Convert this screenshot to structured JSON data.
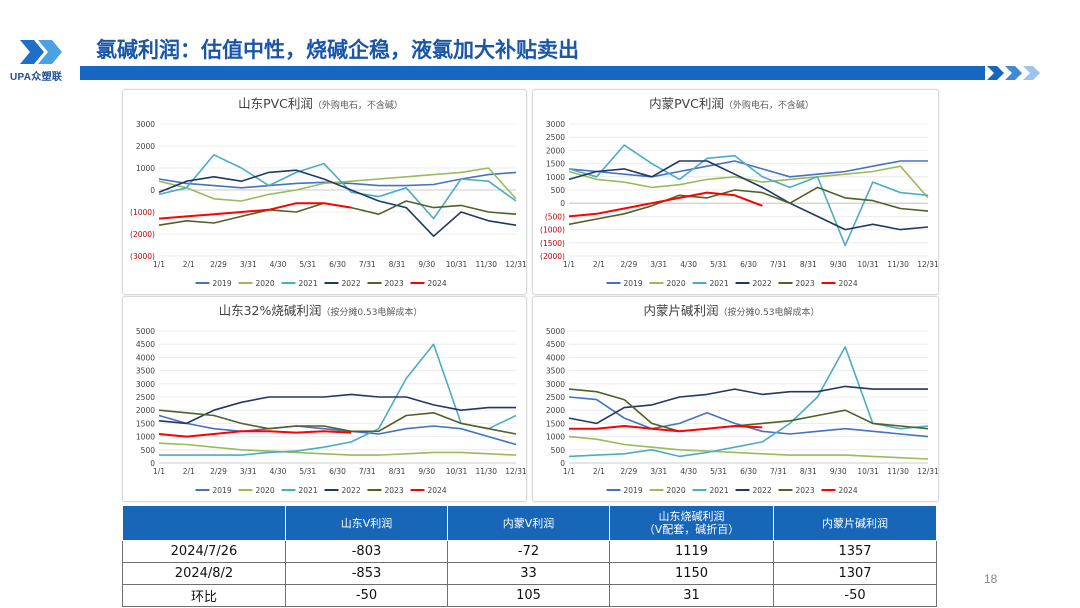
{
  "slide": {
    "title": "氯碱利润：估值中性，烧碱企稳，液氯加大补贴卖出",
    "logo_text": "UPA众塑联",
    "page_number": "18",
    "accent_color": "#1767c1"
  },
  "chart_data": [
    {
      "type": "line",
      "title": "山东PVC利润",
      "subtitle": "（外购电石，不含碱）",
      "ylim": [
        -3000,
        3000
      ],
      "yticks": [
        3000,
        2000,
        1000,
        0,
        -1000,
        -2000,
        -3000
      ],
      "ytick_labels": [
        "3000",
        "2000",
        "1000",
        "0",
        "(1000)",
        "(2000)",
        "(3000)"
      ],
      "xtick_labels": [
        "1/1",
        "2/1",
        "2/29",
        "3/31",
        "4/30",
        "5/31",
        "6/30",
        "7/31",
        "8/31",
        "9/30",
        "10/31",
        "11/30",
        "12/31"
      ],
      "legend": "bottom",
      "series": [
        {
          "name": "2019",
          "color": "#4472c4",
          "values": [
            500,
            300,
            200,
            100,
            200,
            300,
            350,
            300,
            200,
            200,
            250,
            500,
            700,
            800
          ]
        },
        {
          "name": "2020",
          "color": "#9bbb59",
          "values": [
            400,
            100,
            -400,
            -500,
            -200,
            0,
            300,
            400,
            500,
            600,
            700,
            800,
            1000,
            -400
          ]
        },
        {
          "name": "2021",
          "color": "#4bacc6",
          "values": [
            -200,
            100,
            1600,
            1000,
            200,
            800,
            1200,
            -100,
            -300,
            100,
            -1300,
            500,
            400,
            -500
          ]
        },
        {
          "name": "2022",
          "color": "#1f3864",
          "values": [
            -100,
            400,
            600,
            400,
            800,
            900,
            500,
            0,
            -500,
            -800,
            -2100,
            -1000,
            -1400,
            -1600
          ]
        },
        {
          "name": "2023",
          "color": "#4f6228",
          "values": [
            -1600,
            -1400,
            -1500,
            -1200,
            -900,
            -1000,
            -600,
            -800,
            -1100,
            -500,
            -800,
            -700,
            -1000,
            -1100
          ]
        },
        {
          "name": "2024",
          "color": "#ff0000",
          "values": [
            -1300,
            -1200,
            -1100,
            -1000,
            -900,
            -600,
            -600,
            -800
          ]
        }
      ]
    },
    {
      "type": "line",
      "title": "内蒙PVC利润",
      "subtitle": "（外购电石，不含碱）",
      "ylim": [
        -2000,
        3000
      ],
      "yticks": [
        3000,
        2500,
        2000,
        1500,
        1000,
        500,
        0,
        -500,
        -1000,
        -1500,
        -2000
      ],
      "ytick_labels": [
        "3000",
        "2500",
        "2000",
        "1500",
        "1000",
        "500",
        "0",
        "(500)",
        "(1000)",
        "(1500)",
        "(2000)"
      ],
      "xtick_labels": [
        "1/1",
        "2/1",
        "2/29",
        "3/31",
        "4/30",
        "5/31",
        "6/30",
        "7/31",
        "8/31",
        "9/30",
        "10/31",
        "11/30",
        "12/31"
      ],
      "legend": "bottom",
      "series": [
        {
          "name": "2019",
          "color": "#4472c4",
          "values": [
            1300,
            1200,
            1100,
            1000,
            1200,
            1400,
            1600,
            1300,
            1000,
            1100,
            1200,
            1400,
            1600,
            1600
          ]
        },
        {
          "name": "2020",
          "color": "#9bbb59",
          "values": [
            1200,
            900,
            800,
            600,
            700,
            900,
            1000,
            800,
            900,
            1000,
            1100,
            1200,
            1400,
            200
          ]
        },
        {
          "name": "2021",
          "color": "#4bacc6",
          "values": [
            1300,
            1000,
            2200,
            1500,
            900,
            1700,
            1800,
            1000,
            600,
            1000,
            -1600,
            800,
            400,
            300
          ]
        },
        {
          "name": "2022",
          "color": "#1f3864",
          "values": [
            900,
            1200,
            1300,
            1000,
            1600,
            1600,
            1100,
            600,
            0,
            -500,
            -1000,
            -800,
            -1000,
            -900
          ]
        },
        {
          "name": "2023",
          "color": "#4f6228",
          "values": [
            -800,
            -600,
            -400,
            -100,
            300,
            200,
            500,
            400,
            0,
            600,
            200,
            100,
            -200,
            -300
          ]
        },
        {
          "name": "2024",
          "color": "#ff0000",
          "values": [
            -500,
            -400,
            -200,
            0,
            200,
            400,
            300,
            -100
          ]
        }
      ]
    },
    {
      "type": "line",
      "title": "山东32%烧碱利润",
      "subtitle": "（按分摊0.53电解成本）",
      "ylim": [
        0,
        5000
      ],
      "yticks": [
        5000,
        4500,
        4000,
        3500,
        3000,
        2500,
        2000,
        1500,
        1000,
        500,
        0
      ],
      "ytick_labels": [
        "5000",
        "4500",
        "4000",
        "3500",
        "3000",
        "2500",
        "2000",
        "1500",
        "1000",
        "500",
        "0"
      ],
      "xtick_labels": [
        "1/1",
        "2/1",
        "2/29",
        "3/31",
        "4/30",
        "5/31",
        "6/30",
        "7/31",
        "8/31",
        "9/30",
        "10/31",
        "11/30",
        "12/31"
      ],
      "legend": "bottom",
      "series": [
        {
          "name": "2019",
          "color": "#4472c4",
          "values": [
            1800,
            1500,
            1300,
            1200,
            1300,
            1400,
            1300,
            1200,
            1100,
            1300,
            1400,
            1300,
            1000,
            700
          ]
        },
        {
          "name": "2020",
          "color": "#9bbb59",
          "values": [
            750,
            700,
            600,
            500,
            450,
            400,
            350,
            300,
            300,
            350,
            400,
            400,
            350,
            300
          ]
        },
        {
          "name": "2021",
          "color": "#4bacc6",
          "values": [
            300,
            300,
            300,
            300,
            400,
            450,
            600,
            800,
            1300,
            3200,
            4500,
            1500,
            1300,
            1800
          ]
        },
        {
          "name": "2022",
          "color": "#1f3864",
          "values": [
            1600,
            1500,
            2000,
            2300,
            2500,
            2500,
            2500,
            2600,
            2500,
            2500,
            2200,
            2000,
            2100,
            2100
          ]
        },
        {
          "name": "2023",
          "color": "#4f6228",
          "values": [
            2000,
            1900,
            1800,
            1500,
            1300,
            1400,
            1400,
            1200,
            1200,
            1800,
            1900,
            1500,
            1300,
            1100
          ]
        },
        {
          "name": "2024",
          "color": "#ff0000",
          "values": [
            1100,
            1000,
            1100,
            1200,
            1200,
            1150,
            1200,
            1150
          ]
        }
      ]
    },
    {
      "type": "line",
      "title": "内蒙片碱利润",
      "subtitle": "（按分摊0.53电解成本）",
      "ylim": [
        0,
        5000
      ],
      "yticks": [
        5000,
        4500,
        4000,
        3500,
        3000,
        2500,
        2000,
        1500,
        1000,
        500,
        0
      ],
      "ytick_labels": [
        "5000",
        "4500",
        "4000",
        "3500",
        "3000",
        "2500",
        "2000",
        "1500",
        "1000",
        "500",
        "0"
      ],
      "xtick_labels": [
        "1/1",
        "2/1",
        "2/29",
        "3/31",
        "4/30",
        "5/31",
        "6/30",
        "7/31",
        "8/31",
        "9/30",
        "10/31",
        "11/30",
        "12/31"
      ],
      "legend": "bottom",
      "series": [
        {
          "name": "2019",
          "color": "#4472c4",
          "values": [
            2500,
            2400,
            1700,
            1300,
            1500,
            1900,
            1500,
            1200,
            1100,
            1200,
            1300,
            1200,
            1100,
            1000
          ]
        },
        {
          "name": "2020",
          "color": "#9bbb59",
          "values": [
            1000,
            900,
            700,
            600,
            500,
            450,
            400,
            350,
            300,
            300,
            300,
            250,
            200,
            150
          ]
        },
        {
          "name": "2021",
          "color": "#4bacc6",
          "values": [
            250,
            300,
            350,
            500,
            250,
            400,
            600,
            800,
            1500,
            2500,
            4400,
            1500,
            1300,
            1400
          ]
        },
        {
          "name": "2022",
          "color": "#1f3864",
          "values": [
            1700,
            1500,
            2100,
            2200,
            2500,
            2600,
            2800,
            2600,
            2700,
            2700,
            2900,
            2800,
            2800,
            2800
          ]
        },
        {
          "name": "2023",
          "color": "#4f6228",
          "values": [
            2800,
            2700,
            2400,
            1500,
            1200,
            1300,
            1400,
            1500,
            1600,
            1800,
            2000,
            1500,
            1400,
            1300
          ]
        },
        {
          "name": "2024",
          "color": "#ff0000",
          "values": [
            1300,
            1300,
            1400,
            1300,
            1200,
            1300,
            1400,
            1350
          ]
        }
      ]
    }
  ],
  "table": {
    "headers": [
      "",
      "山东V利润",
      "内蒙V利润",
      "山东烧碱利润\n（V配套，碱折百）",
      "内蒙片碱利润"
    ],
    "rows": [
      [
        "2024/7/26",
        "-803",
        "-72",
        "1119",
        "1357"
      ],
      [
        "2024/8/2",
        "-853",
        "33",
        "1150",
        "1307"
      ],
      [
        "环比",
        "-50",
        "105",
        "31",
        "-50"
      ]
    ]
  }
}
